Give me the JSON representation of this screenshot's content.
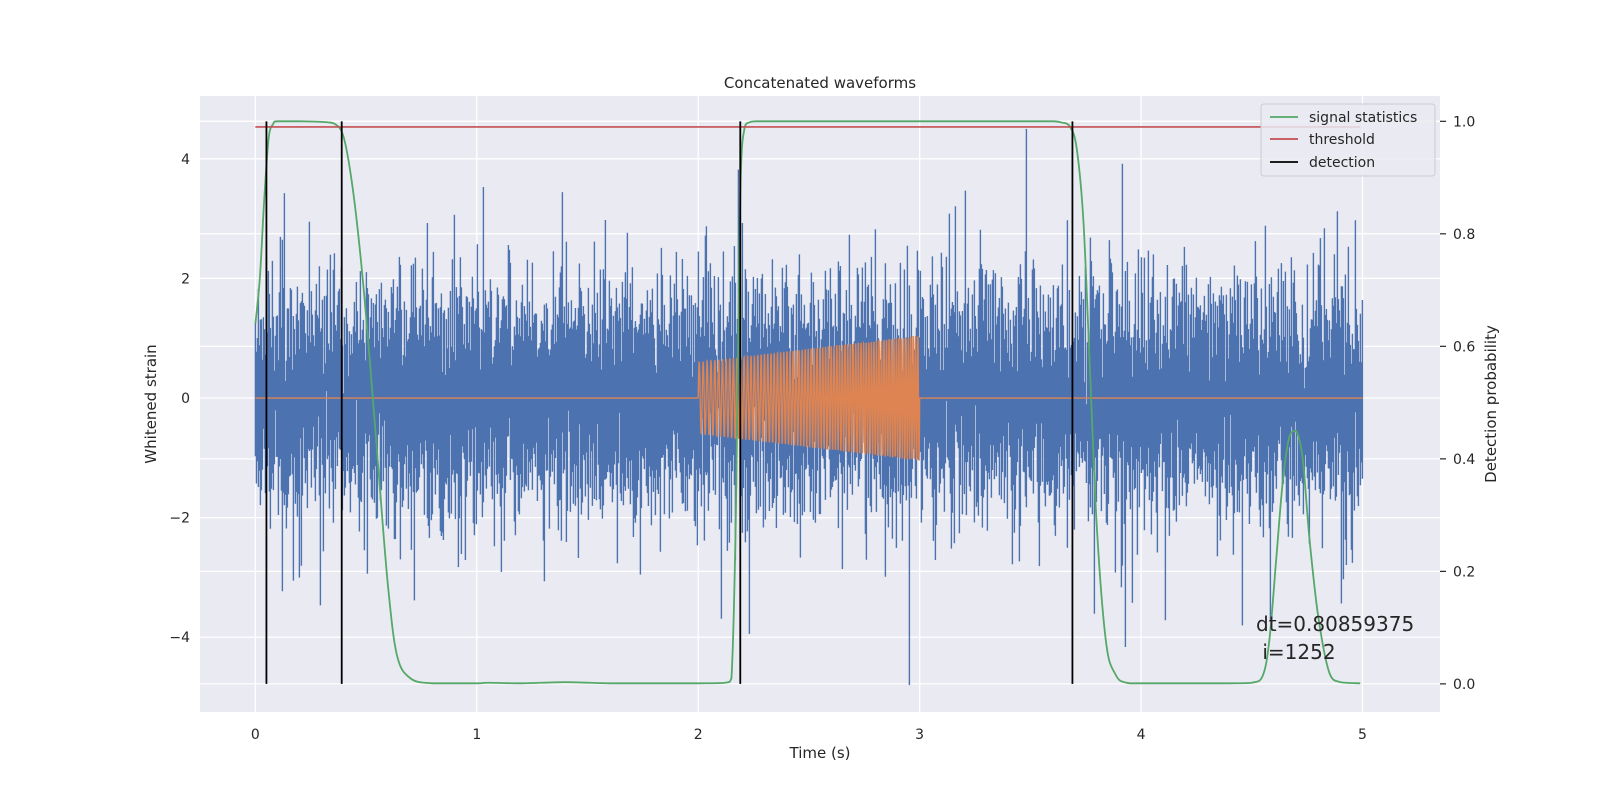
{
  "chart_data": {
    "type": "line",
    "title": "Concatenated waveforms",
    "xlabel": "Time (s)",
    "ylabel": "Whitened strain",
    "y2label": "Detection probability",
    "xlim": [
      -0.25,
      5.35
    ],
    "ylim": [
      -5.25,
      5.05
    ],
    "y2lim": [
      -0.05,
      1.045
    ],
    "xticks": [
      0,
      1,
      2,
      3,
      4,
      5
    ],
    "yticks": [
      -4,
      -2,
      0,
      2,
      4
    ],
    "y2ticks": [
      0.0,
      0.2,
      0.4,
      0.6,
      0.8,
      1.0
    ],
    "xtick_labels": [
      "0",
      "1",
      "2",
      "3",
      "4",
      "5"
    ],
    "ytick_labels": [
      "−4",
      "−2",
      "0",
      "2",
      "4"
    ],
    "y2tick_labels": [
      "0.0",
      "0.2",
      "0.4",
      "0.6",
      "0.8",
      "1.0"
    ],
    "grid": true,
    "legend_position": "top-right",
    "colors": {
      "background": "#eaeaf2",
      "grid": "#ffffff",
      "noise": "#4c72b0",
      "injection": "#dd8452",
      "signal_statistics": "#55a868",
      "threshold": "#c44e52",
      "detection": "#000000"
    },
    "series": [
      {
        "name": "",
        "axis": "left",
        "description_type": "noise",
        "x_range": [
          0,
          5
        ],
        "amplitude_std": 0.9,
        "peak_max": 4.5,
        "peak_min": -4.8
      },
      {
        "name": "",
        "axis": "left",
        "description_type": "chirp",
        "x_range": [
          2.0,
          3.0
        ],
        "amplitude_start": 0.6,
        "amplitude_end": 1.05
      },
      {
        "name": "signal statistics",
        "axis": "right",
        "x": [
          0.0,
          0.02,
          0.04,
          0.06,
          0.08,
          0.1,
          0.2,
          0.3,
          0.36,
          0.4,
          0.44,
          0.48,
          0.52,
          0.56,
          0.6,
          0.64,
          0.7,
          0.8,
          1.0,
          1.05,
          1.2,
          1.4,
          1.6,
          1.8,
          2.0,
          2.12,
          2.15,
          2.17,
          2.19,
          2.21,
          2.23,
          2.26,
          2.3,
          2.5,
          3.0,
          3.5,
          3.6,
          3.64,
          3.68,
          3.71,
          3.74,
          3.77,
          3.8,
          3.84,
          3.88,
          3.95,
          4.2,
          4.4,
          4.5,
          4.55,
          4.58,
          4.61,
          4.64,
          4.67,
          4.7,
          4.73,
          4.76,
          4.8,
          4.85,
          4.9,
          4.99
        ],
        "values": [
          0.64,
          0.72,
          0.86,
          0.97,
          0.995,
          1.0,
          1.0,
          0.999,
          0.995,
          0.97,
          0.88,
          0.74,
          0.56,
          0.36,
          0.17,
          0.05,
          0.01,
          0.001,
          0.001,
          0.002,
          0.001,
          0.003,
          0.001,
          0.001,
          0.001,
          0.002,
          0.01,
          0.3,
          0.87,
          0.99,
          0.998,
          1.0,
          1.0,
          1.0,
          1.0,
          1.0,
          1.0,
          0.998,
          0.99,
          0.95,
          0.82,
          0.55,
          0.28,
          0.08,
          0.02,
          0.001,
          0.001,
          0.001,
          0.002,
          0.015,
          0.08,
          0.22,
          0.36,
          0.44,
          0.45,
          0.4,
          0.26,
          0.12,
          0.02,
          0.003,
          0.001
        ]
      },
      {
        "name": "threshold",
        "axis": "right",
        "x": [
          0.0,
          4.99
        ],
        "values": [
          0.99,
          0.99
        ]
      },
      {
        "name": "detection",
        "axis": "right",
        "x_positions": [
          0.05,
          0.39,
          2.19,
          3.69
        ],
        "y_range": [
          0.0,
          1.0
        ]
      }
    ],
    "annotation": {
      "line1": "dt=0.80859375",
      "line2": " i=1252",
      "x": 4.5,
      "y": -4.4
    }
  }
}
